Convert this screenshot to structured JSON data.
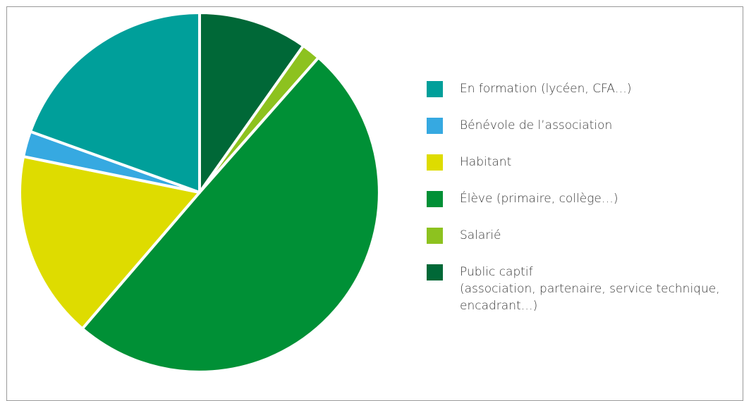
{
  "chart_data": {
    "type": "pie",
    "title": "",
    "slices": [
      {
        "label": "Public captif\n(association, partenaire, service technique,\nencadrant…)",
        "value": 9.8,
        "color": "#006837"
      },
      {
        "label": "Salarié",
        "value": 1.7,
        "color": "#8dc21f"
      },
      {
        "label": "Élève (primaire, collège…)",
        "value": 49.8,
        "color": "#009036"
      },
      {
        "label": "Habitant",
        "value": 16.9,
        "color": "#dedc00"
      },
      {
        "label": "Bénévole de l’association",
        "value": 2.3,
        "color": "#36a9e1"
      },
      {
        "label": "En formation (lycéen, CFA…)",
        "value": 19.5,
        "color": "#009f9a"
      }
    ],
    "legend_order": [
      5,
      4,
      3,
      2,
      1,
      0
    ],
    "legend_position": "right"
  }
}
